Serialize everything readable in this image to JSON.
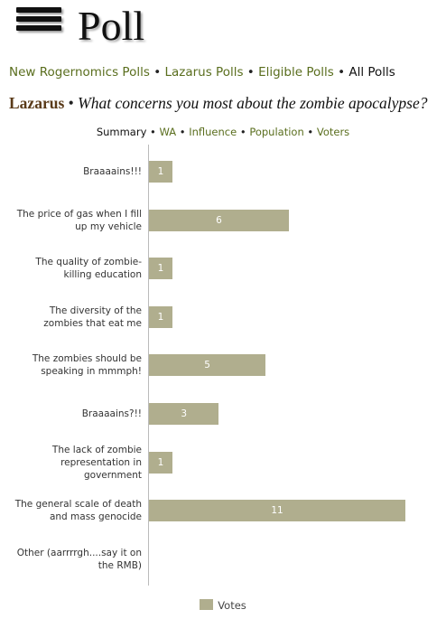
{
  "header": {
    "title": "Poll"
  },
  "separator": "•",
  "nav": {
    "links": [
      "New Rogernomics Polls",
      "Lazarus Polls",
      "Eligible Polls",
      "All Polls"
    ]
  },
  "poll": {
    "region": "Lazarus",
    "question": "What concerns you most about the zombie apocalypse?"
  },
  "tabs": [
    "Summary",
    "WA",
    "Influence",
    "Population",
    "Voters"
  ],
  "chart_data": {
    "type": "hbar",
    "categories": [
      "Braaaains!!!",
      "The price of gas when I fill up my vehicle",
      "The quality of zombie-killing education",
      "The diversity of the zombies that eat me",
      "The zombies should be speaking in mmmph!",
      "Braaaains?!!",
      "The lack of zombie representation in government",
      "The general scale of death and mass genocide",
      "Other (aarrrrgh....say it on the RMB)"
    ],
    "series": [
      {
        "name": "Votes",
        "color": "#b0ae8e",
        "values": [
          1,
          6,
          1,
          1,
          5,
          3,
          1,
          11,
          0
        ]
      }
    ],
    "xlim": [
      0,
      11
    ]
  }
}
